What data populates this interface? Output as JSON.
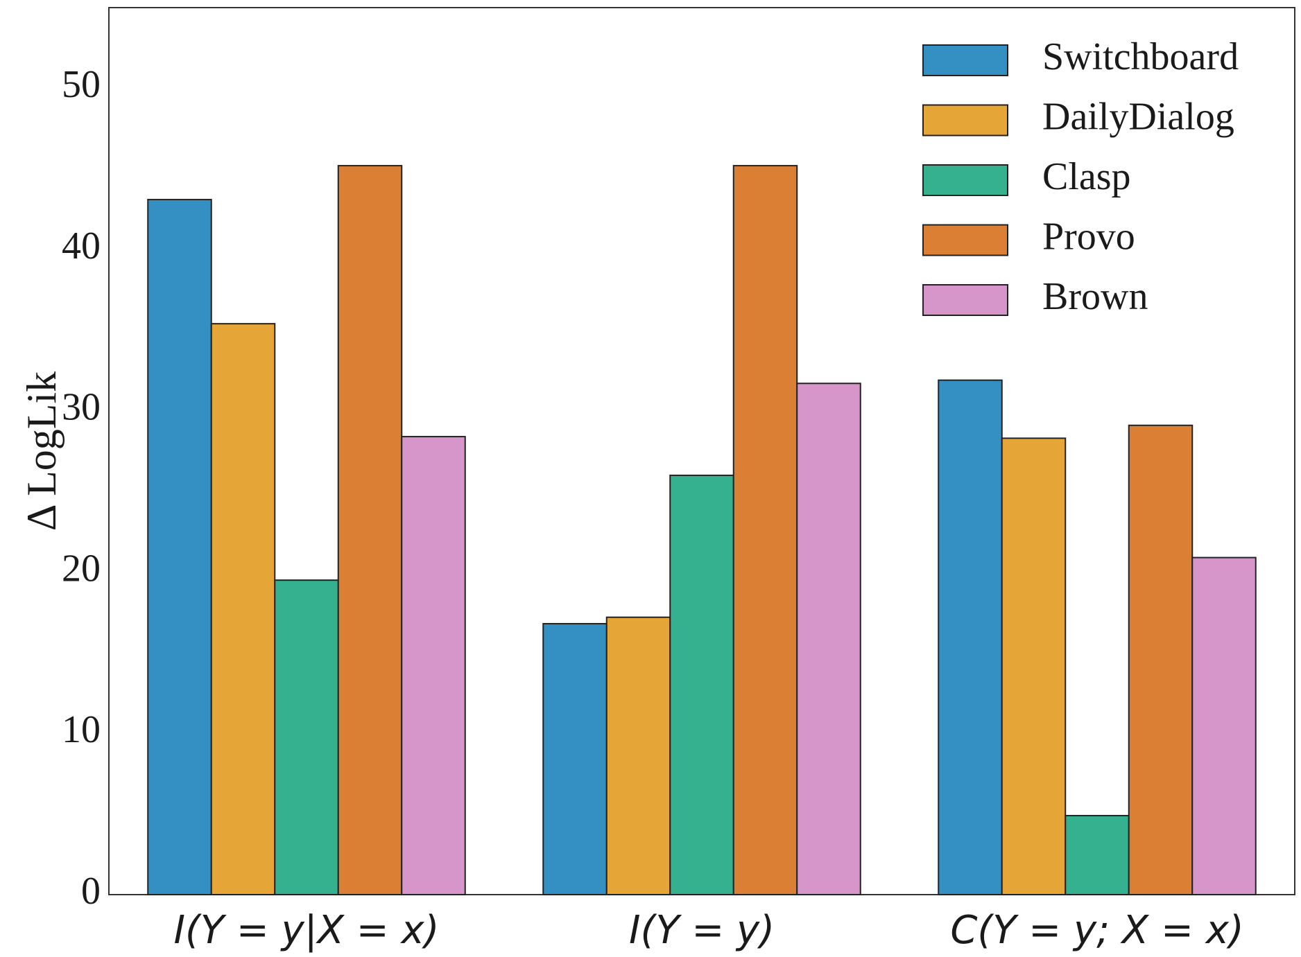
{
  "chart_data": {
    "type": "bar",
    "title": "",
    "xlabel": "",
    "ylabel": "Δ LogLik",
    "ylim": [
      0,
      55
    ],
    "yticks": [
      0,
      10,
      20,
      30,
      40,
      50
    ],
    "grid": false,
    "legend_position": "top-right",
    "categories": [
      "I(Y = y|X = x)",
      "I(Y = y)",
      "C(Y = y; X = x)"
    ],
    "series": [
      {
        "name": "Switchboard",
        "color": "#348fc2",
        "values": [
          43.1,
          16.8,
          31.9
        ]
      },
      {
        "name": "DailyDialog",
        "color": "#e5a537",
        "values": [
          35.4,
          17.2,
          28.3
        ]
      },
      {
        "name": "Clasp",
        "color": "#35b18f",
        "values": [
          19.5,
          26.0,
          4.9
        ]
      },
      {
        "name": "Provo",
        "color": "#db7f35",
        "values": [
          45.2,
          45.2,
          29.1
        ]
      },
      {
        "name": "Brown",
        "color": "#d696c9",
        "values": [
          28.4,
          31.7,
          20.9
        ]
      }
    ]
  }
}
